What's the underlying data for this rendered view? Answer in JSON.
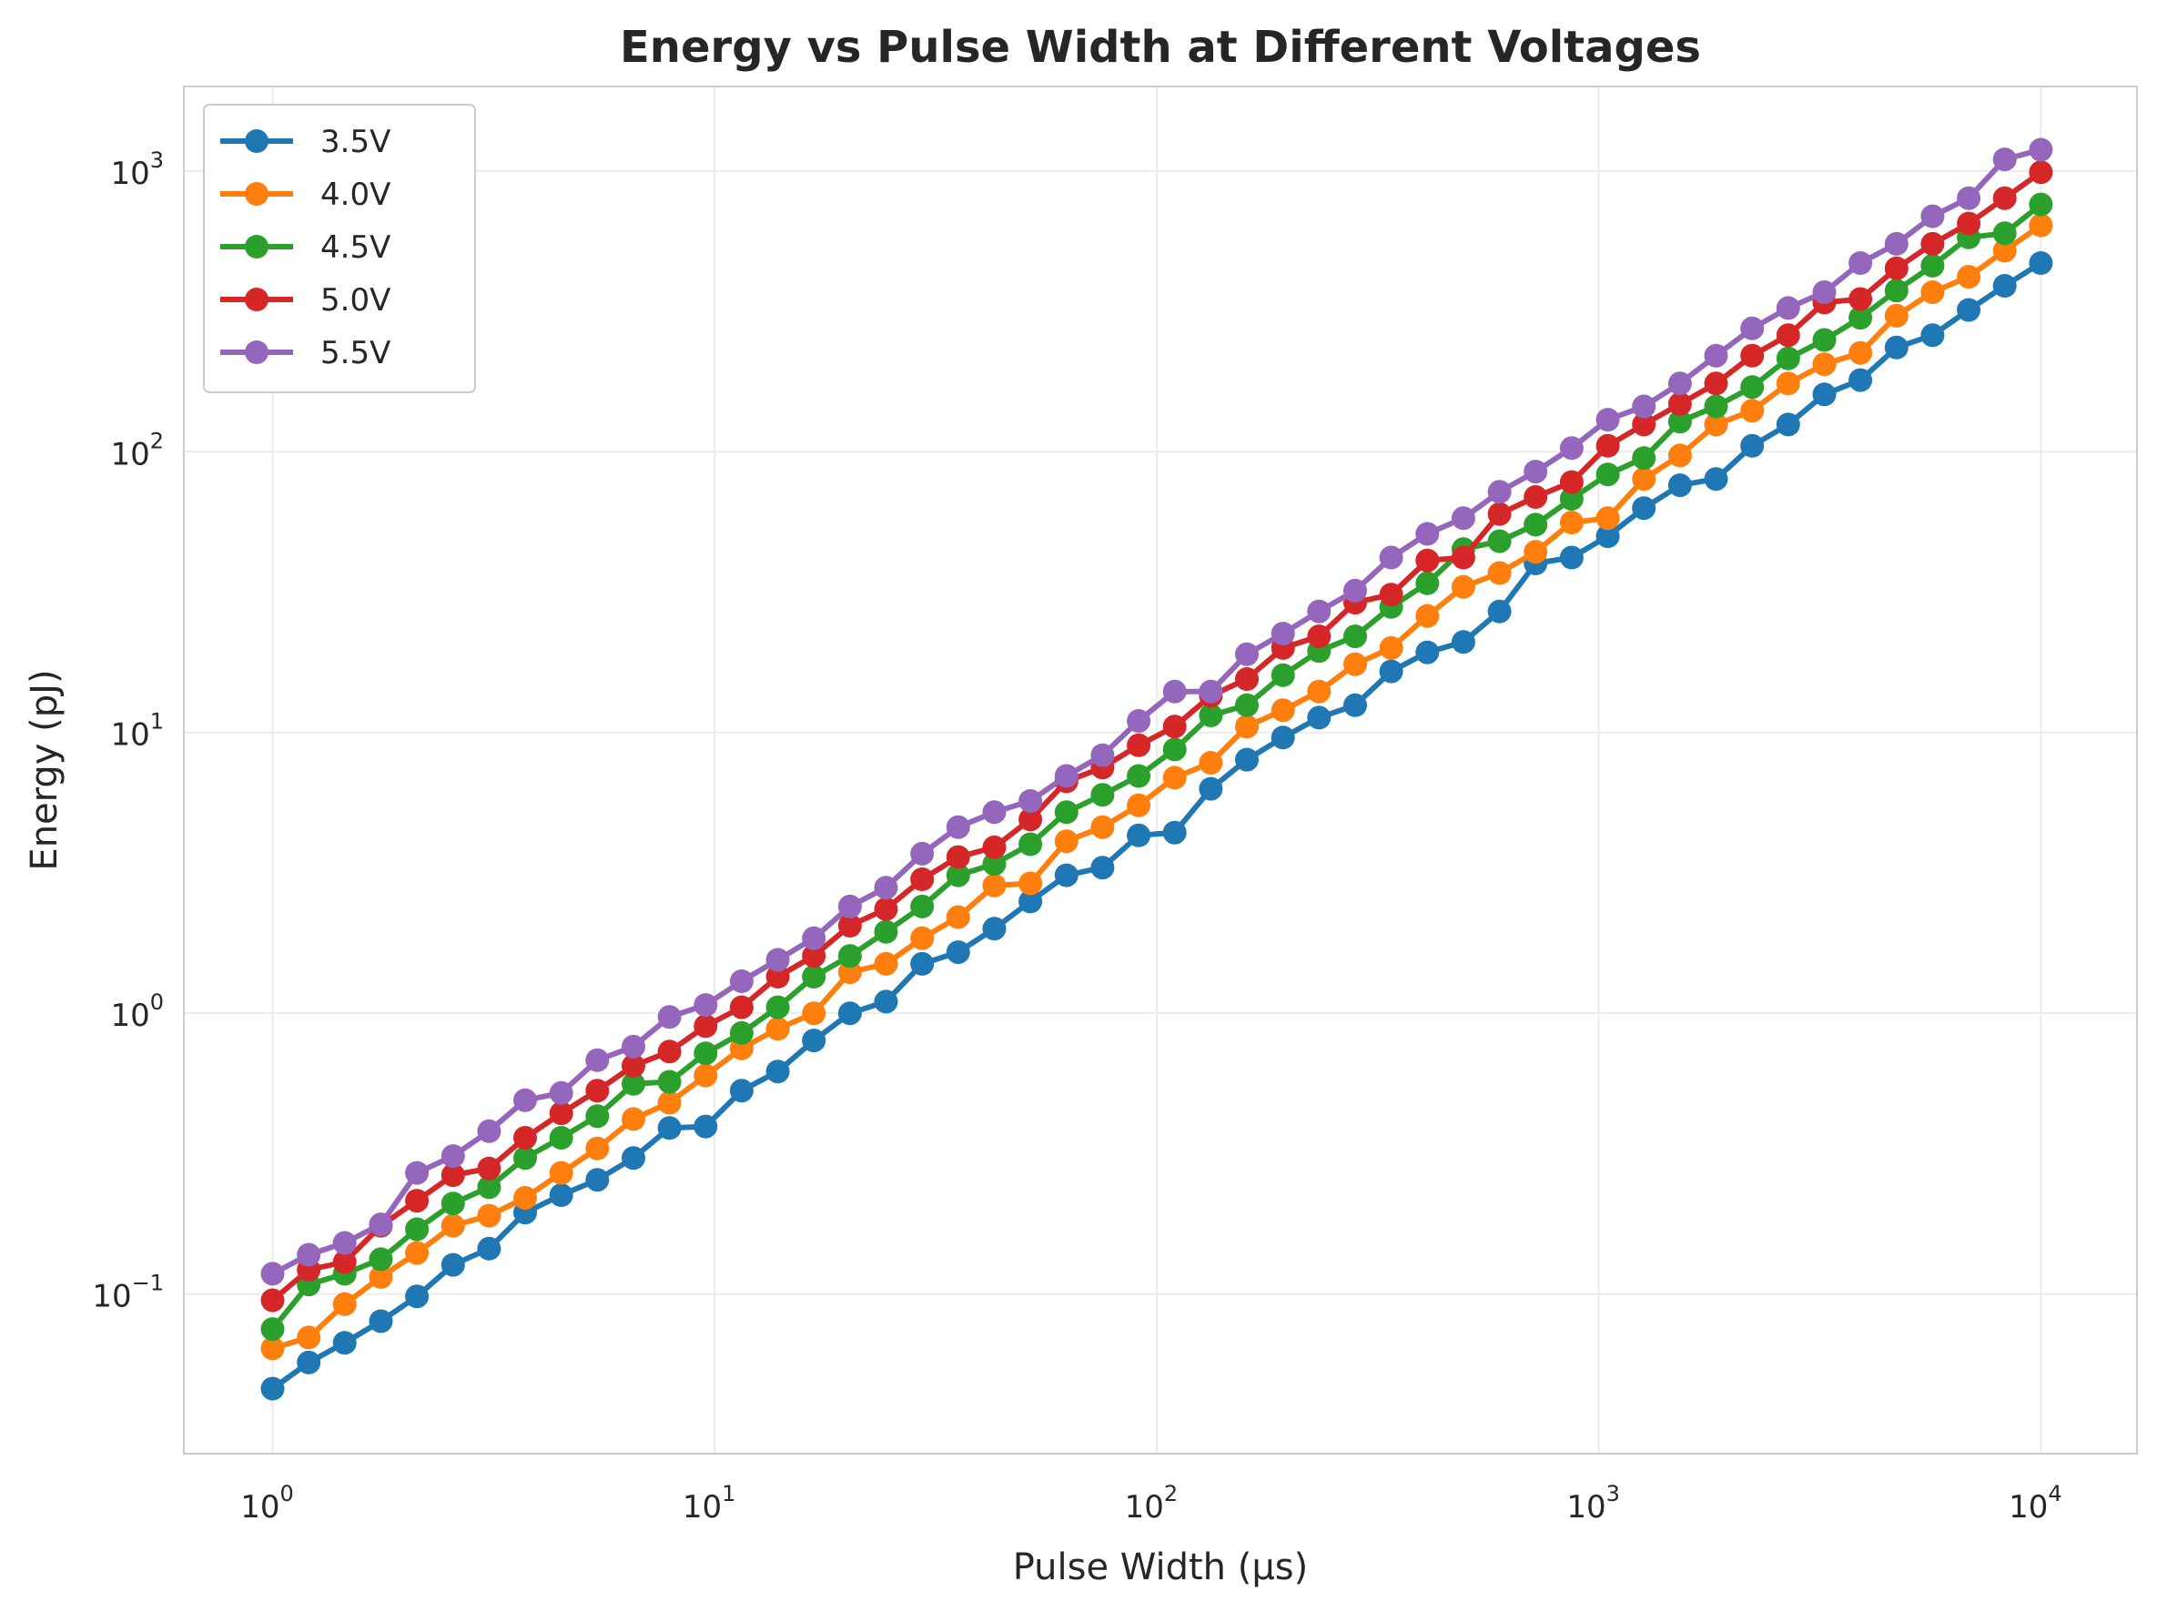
{
  "chart_data": {
    "type": "line",
    "title": "Energy vs Pulse Width at Different Voltages",
    "xlabel": "Pulse Width (μs)",
    "ylabel": "Energy (pJ)",
    "xscale": "log",
    "yscale": "log",
    "xlim": [
      0.63,
      16500
    ],
    "ylim": [
      0.027,
      2000
    ],
    "xticks": [
      1,
      10,
      100,
      1000,
      10000
    ],
    "xtick_labels": [
      {
        "base": "10",
        "exp": "0"
      },
      {
        "base": "10",
        "exp": "1"
      },
      {
        "base": "10",
        "exp": "2"
      },
      {
        "base": "10",
        "exp": "3"
      },
      {
        "base": "10",
        "exp": "4"
      }
    ],
    "yticks": [
      0.1,
      1,
      10,
      100,
      1000
    ],
    "ytick_labels": [
      {
        "base": "10",
        "exp": "−1"
      },
      {
        "base": "10",
        "exp": "0"
      },
      {
        "base": "10",
        "exp": "1"
      },
      {
        "base": "10",
        "exp": "2"
      },
      {
        "base": "10",
        "exp": "3"
      }
    ],
    "grid": true,
    "legend": "upper-left",
    "x": [
      1.0,
      1.207,
      1.456,
      1.758,
      2.121,
      2.56,
      3.089,
      3.728,
      4.498,
      5.429,
      6.551,
      7.906,
      9.541,
      11.514,
      13.895,
      16.768,
      20.236,
      24.421,
      29.471,
      35.565,
      42.92,
      51.795,
      62.506,
      75.431,
      91.029,
      109.854,
      132.571,
      159.986,
      193.069,
      232.995,
      281.177,
      339.322,
      409.492,
      494.171,
      596.362,
      719.686,
      868.511,
      1048.113,
      1264.855,
      1526.418,
      1842.07,
      2222.996,
      2682.696,
      3237.458,
      3906.94,
      4714.866,
      5689.866,
      6866.488,
      8286.428,
      10000.0
    ],
    "series": [
      {
        "name": "3.5V",
        "color": "#1f77b4",
        "values": [
          0.046,
          0.057,
          0.067,
          0.08,
          0.098,
          0.127,
          0.145,
          0.195,
          0.225,
          0.255,
          0.305,
          0.39,
          0.395,
          0.53,
          0.62,
          0.8,
          1.0,
          1.1,
          1.5,
          1.65,
          2.0,
          2.5,
          3.1,
          3.3,
          4.3,
          4.4,
          6.3,
          8.0,
          9.6,
          11.3,
          12.5,
          16.5,
          19.3,
          21.0,
          27.0,
          40.0,
          42.0,
          50.0,
          63.0,
          76.0,
          80.0,
          105.0,
          125.0,
          160.0,
          180.0,
          235.0,
          260.0,
          320.0,
          390.0,
          470.0
        ]
      },
      {
        "name": "4.0V",
        "color": "#ff7f0e",
        "values": [
          0.064,
          0.07,
          0.092,
          0.115,
          0.14,
          0.175,
          0.19,
          0.22,
          0.27,
          0.33,
          0.42,
          0.48,
          0.6,
          0.75,
          0.88,
          1.0,
          1.4,
          1.5,
          1.85,
          2.2,
          2.85,
          2.9,
          4.1,
          4.6,
          5.5,
          6.9,
          7.8,
          10.5,
          12.0,
          14.0,
          17.5,
          20.0,
          26.0,
          33.0,
          37.0,
          44.0,
          56.0,
          58.0,
          80.0,
          97.0,
          125.0,
          140.0,
          175.0,
          205.0,
          225.0,
          305.0,
          370.0,
          420.0,
          520.0,
          640.0
        ]
      },
      {
        "name": "4.5V",
        "color": "#2ca02c",
        "values": [
          0.075,
          0.108,
          0.118,
          0.133,
          0.17,
          0.21,
          0.24,
          0.305,
          0.36,
          0.43,
          0.56,
          0.57,
          0.72,
          0.85,
          1.05,
          1.35,
          1.6,
          1.95,
          2.4,
          3.1,
          3.4,
          4.0,
          5.2,
          6.0,
          7.0,
          8.7,
          11.5,
          12.5,
          16.0,
          19.5,
          22.0,
          28.0,
          34.0,
          45.0,
          48.0,
          55.0,
          68.0,
          83.0,
          95.0,
          128.0,
          145.0,
          170.0,
          215.0,
          250.0,
          300.0,
          375.0,
          460.0,
          580.0,
          600.0,
          760.0
        ]
      },
      {
        "name": "5.0V",
        "color": "#d62728",
        "values": [
          0.095,
          0.122,
          0.13,
          0.175,
          0.215,
          0.265,
          0.28,
          0.36,
          0.44,
          0.53,
          0.65,
          0.73,
          0.9,
          1.05,
          1.35,
          1.6,
          2.05,
          2.35,
          3.0,
          3.6,
          3.9,
          4.9,
          6.7,
          7.5,
          9.0,
          10.5,
          13.5,
          15.5,
          20.0,
          22.0,
          29.0,
          31.0,
          41.0,
          42.0,
          60.0,
          69.0,
          78.0,
          105.0,
          125.0,
          148.0,
          175.0,
          220.0,
          260.0,
          340.0,
          350.0,
          450.0,
          550.0,
          650.0,
          800.0,
          990.0
        ]
      },
      {
        "name": "5.5V",
        "color": "#9467bd",
        "values": [
          0.118,
          0.138,
          0.152,
          0.177,
          0.27,
          0.31,
          0.38,
          0.49,
          0.52,
          0.68,
          0.76,
          0.97,
          1.07,
          1.3,
          1.55,
          1.85,
          2.4,
          2.8,
          3.7,
          4.6,
          5.2,
          5.7,
          7.0,
          8.3,
          11.0,
          14.0,
          14.0,
          19.0,
          22.5,
          27.0,
          32.0,
          42.0,
          51.0,
          58.0,
          72.0,
          85.0,
          103.0,
          130.0,
          145.0,
          175.0,
          220.0,
          275.0,
          325.0,
          370.0,
          470.0,
          550.0,
          690.0,
          800.0,
          1100.0,
          1190.0
        ]
      }
    ]
  }
}
